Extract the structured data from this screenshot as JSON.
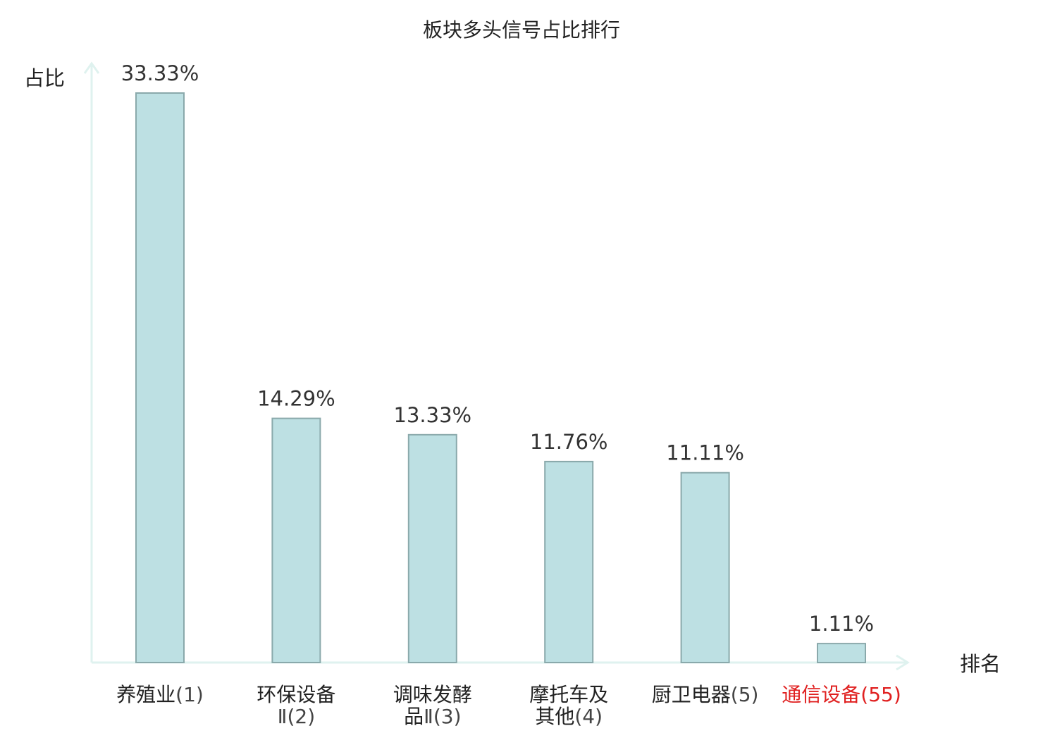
{
  "chart_data": {
    "type": "bar",
    "title": "板块多头信号占比排行",
    "ylabel": "占比",
    "xlabel": "排名",
    "ylim": [
      0,
      35
    ],
    "grid": false,
    "unit": "%",
    "categories": [
      {
        "lines": [
          {
            "name": "养殖业",
            "rank": "(1)"
          }
        ]
      },
      {
        "lines": [
          {
            "name": "环保设备",
            "rank": ""
          },
          {
            "name": "",
            "rank": "Ⅱ(2)"
          }
        ]
      },
      {
        "lines": [
          {
            "name": "调味发酵",
            "rank": ""
          },
          {
            "name": "品",
            "rank": "Ⅱ(3)"
          }
        ]
      },
      {
        "lines": [
          {
            "name": "摩托车及",
            "rank": ""
          },
          {
            "name": "其他",
            "rank": "(4)"
          }
        ]
      },
      {
        "lines": [
          {
            "name": "厨卫电器",
            "rank": "(5)"
          }
        ]
      },
      {
        "lines": [
          {
            "name": "通信设备",
            "rank": "(55)"
          }
        ],
        "highlight": true
      }
    ],
    "values": [
      33.33,
      14.29,
      13.33,
      11.76,
      11.11,
      1.11
    ],
    "value_labels": [
      "33.33%",
      "14.29%",
      "13.33%",
      "11.76%",
      "11.11%",
      "1.11%"
    ],
    "colors": {
      "bar_fill": "#bde0e3",
      "bar_stroke": "#8aa9ab",
      "axis": "#dff2ef",
      "highlight": "#e02020"
    }
  }
}
